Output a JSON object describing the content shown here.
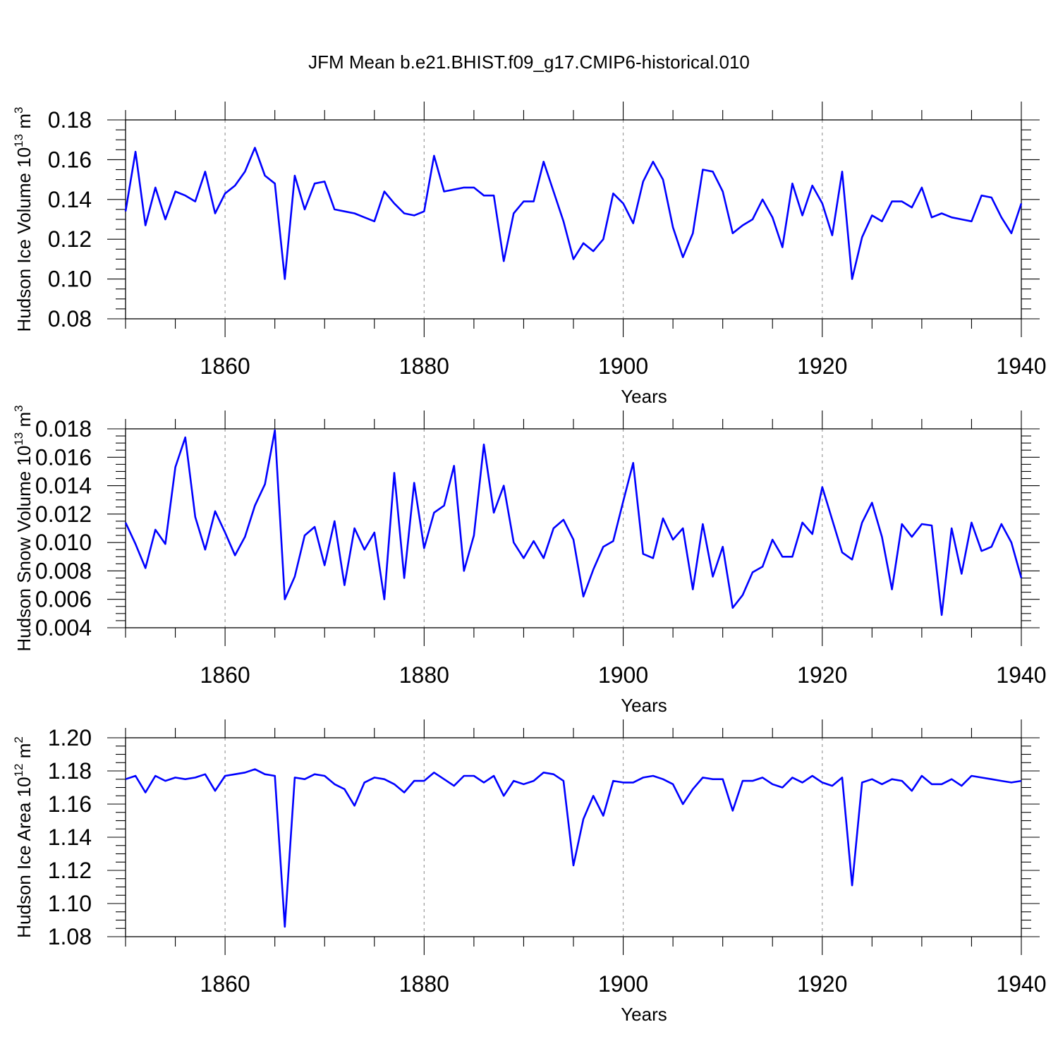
{
  "figure": {
    "title": "JFM Mean b.e21.BHIST.f09_g17.CMIP6-historical.010"
  },
  "colors": {
    "series": "#0000ff",
    "axes": "#000000",
    "grid": "#9a9a9a"
  },
  "chart_data": [
    {
      "type": "line",
      "ylabel": "Hudson Ice Volume 10",
      "ylabel_sup": "13",
      "ylabel_unit": " m",
      "ylabel_unit_sup": "3",
      "xlabel": "Years",
      "xlim": [
        1850,
        1940
      ],
      "ylim": [
        0.08,
        0.18
      ],
      "x_major_ticks": [
        1860,
        1880,
        1900,
        1920,
        1940
      ],
      "y_major_ticks": [
        0.08,
        0.1,
        0.12,
        0.14,
        0.16,
        0.18
      ],
      "y_tick_labels": [
        "0.08",
        "0.10",
        "0.12",
        "0.14",
        "0.16",
        "0.18"
      ],
      "x_tick_labels": [
        "1860",
        "1880",
        "1900",
        "1920",
        "1940"
      ],
      "grid": "vertical dashed at major x ticks",
      "series": [
        {
          "x_start": 1850,
          "values": [
            0.134,
            0.164,
            0.127,
            0.146,
            0.13,
            0.144,
            0.142,
            0.139,
            0.154,
            0.133,
            0.143,
            0.147,
            0.154,
            0.166,
            0.152,
            0.148,
            0.1,
            0.152,
            0.135,
            0.148,
            0.149,
            0.135,
            0.134,
            0.133,
            0.131,
            0.129,
            0.144,
            0.138,
            0.133,
            0.132,
            0.134,
            0.162,
            0.144,
            0.145,
            0.146,
            0.146,
            0.142,
            0.142,
            0.109,
            0.133,
            0.139,
            0.139,
            0.159,
            0.144,
            0.129,
            0.11,
            0.118,
            0.114,
            0.12,
            0.143,
            0.138,
            0.128,
            0.149,
            0.159,
            0.15,
            0.126,
            0.111,
            0.123,
            0.155,
            0.154,
            0.144,
            0.123,
            0.127,
            0.13,
            0.14,
            0.131,
            0.116,
            0.148,
            0.132,
            0.147,
            0.138,
            0.122,
            0.154,
            0.1,
            0.121,
            0.132,
            0.129,
            0.139,
            0.139,
            0.136,
            0.146,
            0.131,
            0.133,
            0.131,
            0.13,
            0.129,
            0.142,
            0.141,
            0.131,
            0.123,
            0.138
          ]
        }
      ]
    },
    {
      "type": "line",
      "ylabel": "Hudson Snow Volume 10",
      "ylabel_sup": "13",
      "ylabel_unit": " m",
      "ylabel_unit_sup": "3",
      "xlabel": "Years",
      "xlim": [
        1850,
        1940
      ],
      "ylim": [
        0.004,
        0.018
      ],
      "x_major_ticks": [
        1860,
        1880,
        1900,
        1920,
        1940
      ],
      "y_major_ticks": [
        0.004,
        0.006,
        0.008,
        0.01,
        0.012,
        0.014,
        0.016,
        0.018
      ],
      "y_tick_labels": [
        "0.004",
        "0.006",
        "0.008",
        "0.010",
        "0.012",
        "0.014",
        "0.016",
        "0.018"
      ],
      "x_tick_labels": [
        "1860",
        "1880",
        "1900",
        "1920",
        "1940"
      ],
      "grid": "vertical dashed at major x ticks",
      "series": [
        {
          "x_start": 1850,
          "values": [
            0.0114,
            0.0099,
            0.0082,
            0.0109,
            0.0099,
            0.0153,
            0.0174,
            0.0118,
            0.0095,
            0.0122,
            0.0107,
            0.0091,
            0.0104,
            0.0126,
            0.0141,
            0.0179,
            0.006,
            0.0076,
            0.0105,
            0.0111,
            0.0084,
            0.0115,
            0.007,
            0.011,
            0.0095,
            0.0107,
            0.006,
            0.0149,
            0.0075,
            0.0142,
            0.0096,
            0.0121,
            0.0126,
            0.0154,
            0.008,
            0.0105,
            0.0169,
            0.0121,
            0.014,
            0.01,
            0.0089,
            0.0101,
            0.0089,
            0.011,
            0.0116,
            0.0102,
            0.0062,
            0.0081,
            0.0097,
            0.0101,
            0.0129,
            0.0156,
            0.0092,
            0.0089,
            0.0117,
            0.0102,
            0.011,
            0.0067,
            0.0113,
            0.0076,
            0.0097,
            0.0054,
            0.0063,
            0.0079,
            0.0083,
            0.0102,
            0.009,
            0.009,
            0.0114,
            0.0106,
            0.0139,
            0.0116,
            0.0093,
            0.0088,
            0.0114,
            0.0128,
            0.0104,
            0.0067,
            0.0113,
            0.0104,
            0.0113,
            0.0112,
            0.0049,
            0.011,
            0.0078,
            0.0114,
            0.0094,
            0.0097,
            0.0113,
            0.01,
            0.0075
          ]
        }
      ]
    },
    {
      "type": "line",
      "ylabel": "Hudson Ice Area 10",
      "ylabel_sup": "12",
      "ylabel_unit": " m",
      "ylabel_unit_sup": "2",
      "xlabel": "Years",
      "xlim": [
        1850,
        1940
      ],
      "ylim": [
        1.08,
        1.2
      ],
      "x_major_ticks": [
        1860,
        1880,
        1900,
        1920,
        1940
      ],
      "y_major_ticks": [
        1.08,
        1.1,
        1.12,
        1.14,
        1.16,
        1.18,
        1.2
      ],
      "y_tick_labels": [
        "1.08",
        "1.10",
        "1.12",
        "1.14",
        "1.16",
        "1.18",
        "1.20"
      ],
      "x_tick_labels": [
        "1860",
        "1880",
        "1900",
        "1920",
        "1940"
      ],
      "grid": "vertical dashed at major x ticks",
      "series": [
        {
          "x_start": 1850,
          "values": [
            1.175,
            1.177,
            1.167,
            1.177,
            1.174,
            1.176,
            1.175,
            1.176,
            1.178,
            1.168,
            1.177,
            1.178,
            1.179,
            1.181,
            1.178,
            1.177,
            1.086,
            1.176,
            1.175,
            1.178,
            1.177,
            1.172,
            1.169,
            1.159,
            1.173,
            1.176,
            1.175,
            1.172,
            1.167,
            1.174,
            1.174,
            1.179,
            1.175,
            1.171,
            1.177,
            1.177,
            1.173,
            1.177,
            1.165,
            1.174,
            1.172,
            1.174,
            1.179,
            1.178,
            1.174,
            1.123,
            1.151,
            1.165,
            1.153,
            1.174,
            1.173,
            1.173,
            1.176,
            1.177,
            1.175,
            1.172,
            1.16,
            1.169,
            1.176,
            1.175,
            1.175,
            1.156,
            1.174,
            1.174,
            1.176,
            1.172,
            1.17,
            1.176,
            1.173,
            1.177,
            1.173,
            1.171,
            1.176,
            1.111,
            1.173,
            1.175,
            1.172,
            1.175,
            1.174,
            1.168,
            1.177,
            1.172,
            1.172,
            1.175,
            1.171,
            1.177,
            1.176,
            1.175,
            1.174,
            1.173,
            1.174
          ]
        }
      ]
    }
  ]
}
